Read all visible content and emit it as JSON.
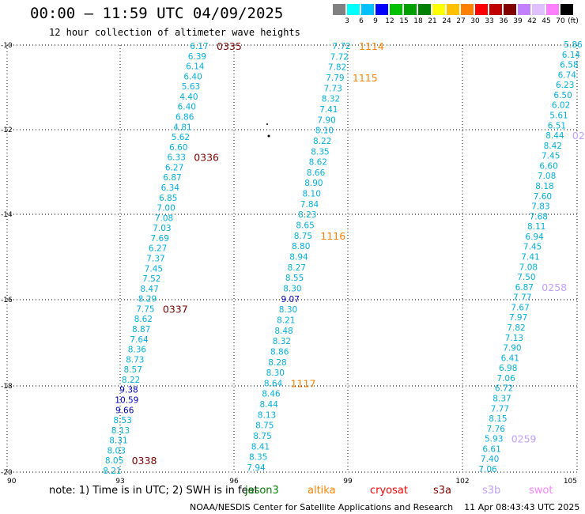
{
  "title": "00:00 – 11:59 UTC 04/09/2025",
  "subtitle": "12 hour collection of altimeter wave heights",
  "colorbar": {
    "unit": "(ft)",
    "colors": [
      "#808080",
      "#00ffff",
      "#00c0ff",
      "#0000ff",
      "#00c000",
      "#00a000",
      "#008000",
      "#ffff00",
      "#ffc000",
      "#ff8000",
      "#ff0000",
      "#c00000",
      "#800000",
      "#c080ff",
      "#e0c0ff",
      "#ff80ff",
      "#000000"
    ],
    "labels": [
      "3",
      "6",
      "9",
      "12",
      "15",
      "18",
      "21",
      "24",
      "27",
      "30",
      "33",
      "36",
      "39",
      "42",
      "45",
      "70"
    ]
  },
  "axes": {
    "y_labels": [
      "-10",
      "-12",
      "-14",
      "-16",
      "-18",
      "-20"
    ],
    "x_labels": [
      "90",
      "93",
      "96",
      "99",
      "102",
      "105"
    ]
  },
  "tracks": [
    {
      "name": "track-1",
      "color": "#00b0e0",
      "values": [
        "6.17",
        "6.39",
        "6.14",
        "6.40",
        "5.63",
        "4.40",
        "6.40",
        "6.86",
        "4.81",
        "5.62",
        "6.60",
        "6.33",
        "6.27",
        "6.87",
        "6.34",
        "6.85",
        "7.00",
        "7.08",
        "7.03",
        "7.69",
        "6.27",
        "7.37",
        "7.45",
        "7.52",
        "8.47",
        "8.29",
        "7.75",
        "8.62",
        "8.87",
        "7.64",
        "8.36",
        "8.73",
        "8.57",
        "8.22",
        "9.38",
        "10.59",
        "9.66",
        "8.53",
        "8.13",
        "8.31",
        "8.03",
        "8.05",
        "8.21"
      ],
      "time_labels": [
        {
          "text": "0335",
          "color": "#800000",
          "after_index": 0
        },
        {
          "text": "0336",
          "color": "#800000",
          "after_index": 11
        },
        {
          "text": "0337",
          "color": "#800000",
          "after_index": 26
        },
        {
          "text": "0338",
          "color": "#800000",
          "after_index": 41
        }
      ]
    },
    {
      "name": "track-2",
      "color": "#00b0e0",
      "values": [
        "7.72",
        "7.72",
        "7.82",
        "7.79",
        "7.73",
        "8.32",
        "7.41",
        "7.90",
        "8.10",
        "8.22",
        "8.35",
        "8.62",
        "8.66",
        "8.90",
        "8.10",
        "7.84",
        "8.23",
        "8.65",
        "8.75",
        "8.80",
        "8.94",
        "8.27",
        "8.55",
        "8.30",
        "9.07",
        "8.30",
        "8.21",
        "8.48",
        "8.32",
        "8.86",
        "8.28",
        "8.30",
        "8.64",
        "8.46",
        "8.44",
        "8.13",
        "8.75",
        "8.75",
        "8.41",
        "8.35",
        "7.94"
      ],
      "time_labels": [
        {
          "text": "1114",
          "color": "#ff8000",
          "after_index": 0
        },
        {
          "text": "1115",
          "color": "#ff8000",
          "after_index": 3
        },
        {
          "text": "1116",
          "color": "#ff8000",
          "after_index": 18
        },
        {
          "text": "1117",
          "color": "#ff8000",
          "after_index": 32
        }
      ]
    },
    {
      "name": "track-3",
      "color": "#00b0e0",
      "values": [
        "5.86",
        "6.14",
        "6.58",
        "6.74",
        "6.23",
        "6.50",
        "6.02",
        "5.61",
        "6.51",
        "8.44",
        "8.42",
        "7.45",
        "6.60",
        "7.08",
        "8.18",
        "7.60",
        "7.83",
        "7.68",
        "8.11",
        "6.94",
        "7.45",
        "7.41",
        "7.08",
        "7.50",
        "6.87",
        "7.77",
        "7.67",
        "7.97",
        "7.82",
        "7.13",
        "7.90",
        "6.41",
        "6.98",
        "7.06",
        "6.72",
        "8.37",
        "7.77",
        "8.15",
        "7.76",
        "5.93",
        "6.61",
        "7.40",
        "7.06"
      ],
      "time_labels": [
        {
          "text": "02",
          "color": "#c0a0ff",
          "after_index": 9
        },
        {
          "text": "0258",
          "color": "#c0a0ff",
          "after_index": 24
        },
        {
          "text": "0259",
          "color": "#c0a0ff",
          "after_index": 39
        }
      ]
    }
  ],
  "note": "note: 1) Time is in UTC; 2) SWH is in feet",
  "legend": [
    {
      "label": "jason3",
      "color": "#008000"
    },
    {
      "label": "altika",
      "color": "#ff8000"
    },
    {
      "label": "cryosat",
      "color": "#ff0000"
    },
    {
      "label": "s3a",
      "color": "#800000"
    },
    {
      "label": "s3b",
      "color": "#c0a0ff"
    },
    {
      "label": "swot",
      "color": "#ff80ff"
    }
  ],
  "credit": "NOAA/NESDIS Center for Satellite Applications and Research",
  "timestamp": "11 Apr 08:43:43 UTC 2025"
}
